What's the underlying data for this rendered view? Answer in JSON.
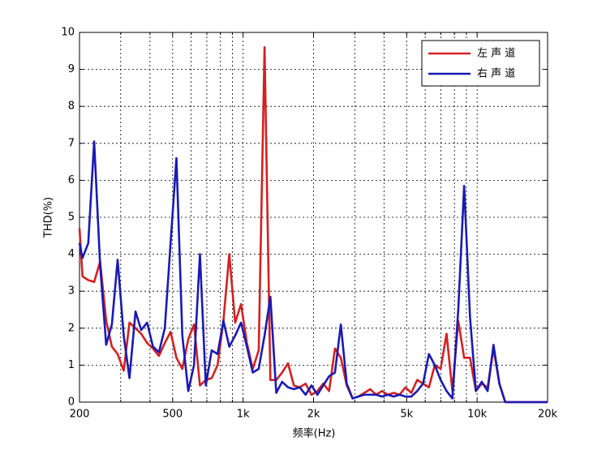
{
  "chart_data": {
    "type": "line",
    "xlabel": "频率(Hz)",
    "ylabel": "THD(%)",
    "xscale": "log",
    "grid": true,
    "legend": "upper right",
    "xlim": [
      200,
      20000
    ],
    "ylim": [
      0,
      10
    ],
    "xticks": [
      200,
      500,
      {
        "value": 1000,
        "label": "1k"
      },
      {
        "value": 2000,
        "label": "2k"
      },
      {
        "value": 5000,
        "label": "5k"
      },
      {
        "value": 10000,
        "label": "10k"
      },
      {
        "value": 20000,
        "label": "20k"
      }
    ],
    "xminorticks": [
      300,
      400,
      600,
      700,
      800,
      900,
      3000,
      4000,
      6000,
      7000,
      8000,
      9000
    ],
    "yticks": [
      0,
      1,
      2,
      3,
      4,
      5,
      6,
      7,
      8,
      9,
      10
    ],
    "x": [
      200,
      206,
      218,
      231,
      245,
      260,
      275,
      291,
      309,
      327,
      347,
      367,
      389,
      412,
      437,
      463,
      490,
      519,
      550,
      583,
      617,
      654,
      693,
      734,
      778,
      824,
      873,
      925,
      980,
      1038,
      1100,
      1166,
      1235,
      1308,
      1386,
      1468,
      1556,
      1648,
      1746,
      1850,
      1960,
      2077,
      2200,
      2331,
      2469,
      2616,
      2772,
      2937,
      3111,
      3296,
      3492,
      3700,
      3920,
      4153,
      4400,
      4662,
      4939,
      5233,
      5544,
      5873,
      6223,
      6593,
      6985,
      7400,
      7840,
      8306,
      8800,
      9323,
      9878,
      10465,
      11087,
      11746,
      12445,
      13185,
      20000
    ],
    "series": [
      {
        "name": "左 声 道",
        "color": "#d42020",
        "values": [
          4.7,
          3.4,
          3.3,
          3.25,
          3.8,
          2.2,
          1.5,
          1.3,
          0.85,
          2.15,
          2.0,
          1.85,
          1.6,
          1.45,
          1.25,
          1.6,
          1.9,
          1.2,
          0.9,
          1.7,
          2.1,
          0.45,
          0.6,
          0.65,
          1.0,
          2.2,
          4.0,
          2.15,
          2.65,
          1.6,
          0.9,
          1.4,
          9.6,
          0.6,
          0.6,
          0.8,
          1.05,
          0.45,
          0.4,
          0.5,
          0.2,
          0.3,
          0.5,
          0.3,
          1.45,
          1.2,
          0.45,
          0.1,
          0.15,
          0.25,
          0.35,
          0.2,
          0.3,
          0.2,
          0.25,
          0.2,
          0.4,
          0.25,
          0.6,
          0.5,
          0.4,
          1.0,
          0.9,
          1.85,
          0.3,
          2.2,
          1.2,
          1.2,
          0.3,
          0.5,
          0.4,
          1.45,
          0.5,
          0,
          0
        ]
      },
      {
        "name": "右 声 道",
        "color": "#1a1ab4",
        "values": [
          4.3,
          3.9,
          4.3,
          7.05,
          3.7,
          1.55,
          2.1,
          3.85,
          1.8,
          0.65,
          2.45,
          1.95,
          2.15,
          1.5,
          1.35,
          2.0,
          4.3,
          6.6,
          1.8,
          0.3,
          1.0,
          4.0,
          0.45,
          1.4,
          1.3,
          2.2,
          1.5,
          1.8,
          2.15,
          1.5,
          0.8,
          0.9,
          1.8,
          2.85,
          0.25,
          0.55,
          0.4,
          0.35,
          0.4,
          0.2,
          0.45,
          0.2,
          0.45,
          0.7,
          0.8,
          2.1,
          0.5,
          0.1,
          0.15,
          0.2,
          0.2,
          0.2,
          0.15,
          0.2,
          0.15,
          0.2,
          0.15,
          0.15,
          0.3,
          0.5,
          1.3,
          1.0,
          0.6,
          0.3,
          0.1,
          2.5,
          5.85,
          2.3,
          0.3,
          0.55,
          0.3,
          1.55,
          0.5,
          0,
          0
        ]
      }
    ]
  }
}
